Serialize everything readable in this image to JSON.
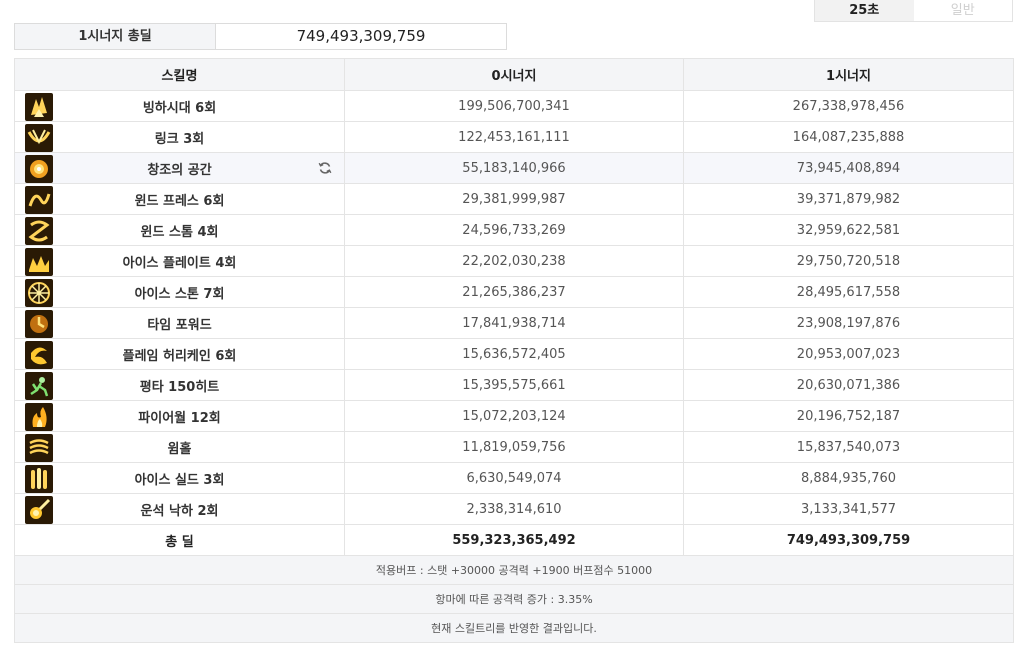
{
  "mode_toggle": {
    "active_label": "25초",
    "inactive_label": "일반"
  },
  "summary": {
    "label": "1시너지 총딜",
    "value": "749,493,309,759"
  },
  "table": {
    "headers": [
      "스킬명",
      "0시너지",
      "1시너지"
    ],
    "rows": [
      {
        "name": "빙하시대 6회",
        "icon": "glacial-age-skill-icon",
        "v0": "199,506,700,341",
        "v1": "267,338,978,456"
      },
      {
        "name": "링크 3회",
        "icon": "link-skill-icon",
        "v0": "122,453,161,111",
        "v1": "164,087,235,888"
      },
      {
        "name": "창조의 공간",
        "icon": "space-of-creation-skill-icon",
        "v0": "55,183,140,966",
        "v1": "73,945,408,894",
        "highlight": true,
        "has_reset": true
      },
      {
        "name": "윈드 프레스 6회",
        "icon": "wind-press-skill-icon",
        "v0": "29,381,999,987",
        "v1": "39,371,879,982"
      },
      {
        "name": "윈드 스톰 4회",
        "icon": "wind-storm-skill-icon",
        "v0": "24,596,733,269",
        "v1": "32,959,622,581"
      },
      {
        "name": "아이스 플레이트 4회",
        "icon": "ice-plate-skill-icon",
        "v0": "22,202,030,238",
        "v1": "29,750,720,518"
      },
      {
        "name": "아이스 스톤 7회",
        "icon": "ice-stone-skill-icon",
        "v0": "21,265,386,237",
        "v1": "28,495,617,558"
      },
      {
        "name": "타임 포워드",
        "icon": "time-forward-skill-icon",
        "v0": "17,841,938,714",
        "v1": "23,908,197,876"
      },
      {
        "name": "플레임 허리케인 6회",
        "icon": "flame-hurricane-skill-icon",
        "v0": "15,636,572,405",
        "v1": "20,953,007,023"
      },
      {
        "name": "평타 150히트",
        "icon": "basic-attack-skill-icon",
        "v0": "15,395,575,661",
        "v1": "20,630,071,386"
      },
      {
        "name": "파이어월 12회",
        "icon": "fire-wall-skill-icon",
        "v0": "15,072,203,124",
        "v1": "20,196,752,187"
      },
      {
        "name": "윔홀",
        "icon": "wormhole-skill-icon",
        "v0": "11,819,059,756",
        "v1": "15,837,540,073"
      },
      {
        "name": "아이스 실드 3회",
        "icon": "ice-shield-skill-icon",
        "v0": "6,630,549,074",
        "v1": "8,884,935,760"
      },
      {
        "name": "운석 낙하 2회",
        "icon": "meteor-fall-skill-icon",
        "v0": "2,338,314,610",
        "v1": "3,133,341,577"
      }
    ],
    "total": {
      "label": "총 딜",
      "v0": "559,323,365,492",
      "v1": "749,493,309,759"
    }
  },
  "footer": {
    "buff_info": "적용버프 : 스탯 +30000 공격력 +1900 버프점수 51000",
    "attack_increase": "항마에 따른 공격력 증가 : 3.35%",
    "note": "현재 스킬트리를 반영한 결과입니다."
  },
  "colors": {
    "header_bg": "#f4f5f7",
    "border": "#e4e4e4",
    "highlight_row": "#f6f7fb",
    "icon_gold": "#e8b020"
  }
}
